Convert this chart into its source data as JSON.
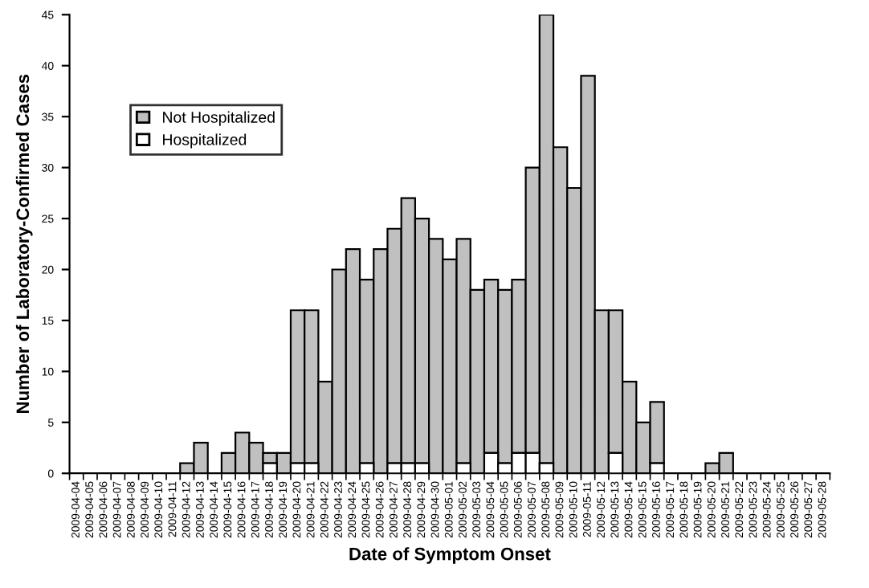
{
  "chart_data": {
    "type": "bar",
    "stacked": true,
    "xlabel": "Date of Symptom Onset",
    "ylabel": "Number of Laboratory-Confirmed Cases",
    "categories": [
      "2009-04-04",
      "2009-04-05",
      "2009-04-06",
      "2009-04-07",
      "2009-04-08",
      "2009-04-09",
      "2009-04-10",
      "2009-04-11",
      "2009-04-12",
      "2009-04-13",
      "2009-04-14",
      "2009-04-15",
      "2009-04-16",
      "2009-04-17",
      "2009-04-18",
      "2009-04-19",
      "2009-04-20",
      "2009-04-21",
      "2009-04-22",
      "2009-04-23",
      "2009-04-24",
      "2009-04-25",
      "2009-04-26",
      "2009-04-27",
      "2009-04-28",
      "2009-04-29",
      "2009-04-30",
      "2009-05-01",
      "2009-05-02",
      "2009-05-03",
      "2009-05-04",
      "2009-05-05",
      "2009-05-06",
      "2009-05-07",
      "2009-05-08",
      "2009-05-09",
      "2009-05-10",
      "2009-05-11",
      "2009-05-12",
      "2009-05-13",
      "2009-05-14",
      "2009-05-15",
      "2009-05-16",
      "2009-05-17",
      "2009-05-18",
      "2009-05-19",
      "2009-05-20",
      "2009-05-21",
      "2009-05-22",
      "2009-05-23",
      "2009-05-24",
      "2009-05-25",
      "2009-05-26",
      "2009-05-27",
      "2009-05-28"
    ],
    "series": [
      {
        "name": "Hospitalized",
        "color": "#ffffff",
        "values": [
          0,
          0,
          0,
          0,
          0,
          0,
          0,
          0,
          0,
          0,
          0,
          0,
          0,
          0,
          1,
          0,
          1,
          1,
          0,
          0,
          0,
          1,
          0,
          1,
          1,
          1,
          0,
          0,
          1,
          0,
          2,
          1,
          2,
          2,
          1,
          0,
          0,
          0,
          0,
          2,
          0,
          0,
          1,
          0,
          0,
          0,
          0,
          0,
          0,
          0,
          0,
          0,
          0,
          0,
          0
        ]
      },
      {
        "name": "Not Hospitalized",
        "color": "#c0c0c0",
        "values": [
          0,
          0,
          0,
          0,
          0,
          0,
          0,
          0,
          1,
          3,
          0,
          2,
          4,
          3,
          1,
          2,
          15,
          15,
          9,
          20,
          22,
          18,
          22,
          23,
          26,
          24,
          23,
          21,
          22,
          18,
          17,
          17,
          17,
          28,
          44,
          32,
          28,
          39,
          16,
          14,
          9,
          5,
          6,
          0,
          0,
          0,
          1,
          2,
          0,
          0,
          0,
          0,
          0,
          0,
          0
        ]
      }
    ],
    "ylim": [
      0,
      45
    ],
    "yticks": [
      0,
      5,
      10,
      15,
      20,
      25,
      30,
      35,
      40,
      45
    ],
    "grid": false,
    "legend": "top left"
  }
}
